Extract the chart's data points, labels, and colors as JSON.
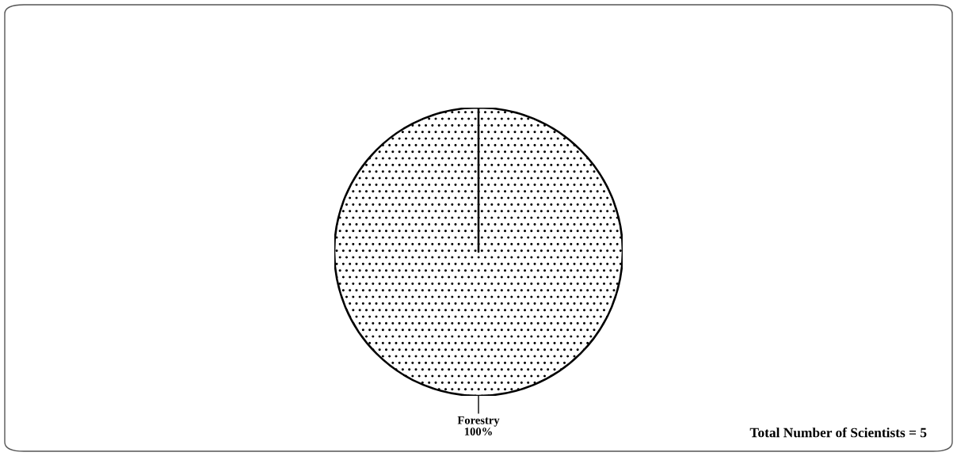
{
  "chart_data": {
    "type": "pie",
    "categories": [
      "Forestry"
    ],
    "values": [
      100
    ],
    "value_labels": [
      "100%"
    ],
    "colors": [
      "#ffffff"
    ],
    "annotations": [
      "Total Number of Scientists = 5"
    ]
  }
}
